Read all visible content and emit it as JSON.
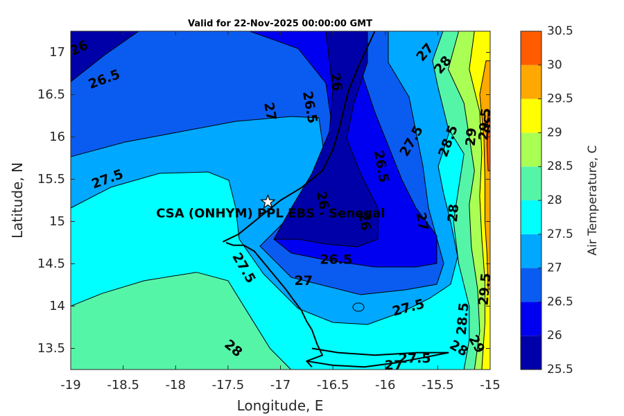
{
  "chart_data": {
    "type": "heatmap",
    "title": "Valid for 22-Nov-2025 00:00:00 GMT",
    "xlabel": "Longitude, E",
    "ylabel": "Latitude, N",
    "xlim": [
      -19,
      -15
    ],
    "ylim": [
      13.25,
      17.25
    ],
    "xticks": [
      -19,
      -18.5,
      -18,
      -17.5,
      -17,
      -16.5,
      -16,
      -15.5,
      -15
    ],
    "yticks": [
      13.5,
      14,
      14.5,
      15,
      15.5,
      16,
      16.5,
      17
    ],
    "colorbar": {
      "label": "Air Temperature, C",
      "levels": [
        25.5,
        26,
        26.5,
        27,
        27.5,
        28,
        28.5,
        29,
        29.5,
        30,
        30.5
      ],
      "tick_labels": [
        "25.5",
        "26",
        "26.5",
        "27",
        "27.5",
        "28",
        "28.5",
        "29",
        "29.5",
        "30",
        "30.5"
      ],
      "colors": [
        "#0000a8",
        "#0000f0",
        "#0a5cf0",
        "#00a8ff",
        "#00ffff",
        "#55f5a8",
        "#aaff55",
        "#ffff00",
        "#ffa800",
        "#ff5c00",
        "#ff0000"
      ]
    },
    "bands": [
      {
        "level": 28.0,
        "color": "#55f5a8",
        "points": [
          [
            -19,
            13.25
          ],
          [
            -19,
            14.0
          ],
          [
            -18.7,
            14.15
          ],
          [
            -18.3,
            14.3
          ],
          [
            -17.8,
            14.4
          ],
          [
            -17.5,
            14.3
          ],
          [
            -17.3,
            13.9
          ],
          [
            -17.1,
            13.5
          ],
          [
            -16.9,
            13.25
          ]
        ]
      },
      {
        "level": 28.0,
        "color": "#55f5a8",
        "points": [
          [
            -15.45,
            17.25
          ],
          [
            -15.55,
            16.9
          ],
          [
            -15.5,
            16.6
          ],
          [
            -15.4,
            16.1
          ],
          [
            -15.25,
            15.8
          ],
          [
            -15.3,
            15.4
          ],
          [
            -15.35,
            15.0
          ],
          [
            -15.3,
            14.5
          ],
          [
            -15.2,
            14.0
          ],
          [
            -15.2,
            13.6
          ],
          [
            -15.25,
            13.25
          ],
          [
            -15,
            13.25
          ],
          [
            -15,
            17.25
          ]
        ]
      },
      {
        "level": 28.5,
        "color": "#aaff55",
        "points": [
          [
            -15.3,
            17.25
          ],
          [
            -15.4,
            16.8
          ],
          [
            -15.25,
            16.4
          ],
          [
            -15.2,
            16.0
          ],
          [
            -15.15,
            15.6
          ],
          [
            -15.2,
            15.2
          ],
          [
            -15.18,
            14.7
          ],
          [
            -15.12,
            14.2
          ],
          [
            -15.1,
            13.7
          ],
          [
            -15.15,
            13.25
          ],
          [
            -15,
            13.25
          ],
          [
            -15,
            17.25
          ]
        ]
      },
      {
        "level": 29.0,
        "color": "#ffff00",
        "points": [
          [
            -15.15,
            17.25
          ],
          [
            -15.2,
            16.8
          ],
          [
            -15.1,
            16.3
          ],
          [
            -15.08,
            15.8
          ],
          [
            -15.1,
            15.3
          ],
          [
            -15.08,
            14.8
          ],
          [
            -15.05,
            14.3
          ],
          [
            -15.05,
            13.8
          ],
          [
            -15.08,
            13.25
          ],
          [
            -15,
            13.25
          ],
          [
            -15,
            17.25
          ]
        ]
      },
      {
        "level": 29.5,
        "color": "#ffa800",
        "points": [
          [
            -15.04,
            16.9
          ],
          [
            -15.1,
            16.5
          ],
          [
            -15.06,
            16.0
          ],
          [
            -15.05,
            15.5
          ],
          [
            -15.05,
            15.0
          ],
          [
            -15.03,
            14.6
          ],
          [
            -15.02,
            14.2
          ],
          [
            -15,
            14.2
          ],
          [
            -15,
            16.9
          ]
        ]
      },
      {
        "level": 30.0,
        "color": "#ff5c00",
        "points": [
          [
            -15.02,
            16.3
          ],
          [
            -15.03,
            15.9
          ],
          [
            -15.02,
            15.6
          ],
          [
            -15,
            15.6
          ],
          [
            -15,
            16.3
          ]
        ]
      }
    ],
    "contour_labels": [
      {
        "text": "26",
        "x": -18.92,
        "y": 17.05,
        "rot": -25
      },
      {
        "text": "26.5",
        "x": -18.68,
        "y": 16.68,
        "rot": -20
      },
      {
        "text": "27",
        "x": -17.1,
        "y": 16.3,
        "rot": 80
      },
      {
        "text": "26.5",
        "x": -16.72,
        "y": 16.35,
        "rot": 80
      },
      {
        "text": "26",
        "x": -16.47,
        "y": 16.65,
        "rot": 80
      },
      {
        "text": "27.5",
        "x": -18.65,
        "y": 15.5,
        "rot": -20
      },
      {
        "text": "26.5",
        "x": -16.04,
        "y": 15.65,
        "rot": 80
      },
      {
        "text": "26",
        "x": -16.6,
        "y": 15.25,
        "rot": 80
      },
      {
        "text": "26",
        "x": -16.2,
        "y": 15.0,
        "rot": 80
      },
      {
        "text": "27.5",
        "x": -15.75,
        "y": 15.95,
        "rot": -60
      },
      {
        "text": "27",
        "x": -15.62,
        "y": 17.0,
        "rot": -50
      },
      {
        "text": "28",
        "x": -15.45,
        "y": 16.85,
        "rot": -50
      },
      {
        "text": "28.5",
        "x": -15.4,
        "y": 15.95,
        "rot": -70
      },
      {
        "text": "29",
        "x": -15.18,
        "y": 16.0,
        "rot": -85
      },
      {
        "text": "29.5",
        "x": -15.05,
        "y": 16.15,
        "rot": -85
      },
      {
        "text": "30",
        "x": -15.02,
        "y": 16.15,
        "rot": 90
      },
      {
        "text": "27",
        "x": -15.65,
        "y": 15.0,
        "rot": 80
      },
      {
        "text": "28",
        "x": -15.35,
        "y": 15.1,
        "rot": -85
      },
      {
        "text": "27.5",
        "x": -17.35,
        "y": 14.45,
        "rot": 60
      },
      {
        "text": "26.5",
        "x": -16.47,
        "y": 14.55,
        "rot": 0
      },
      {
        "text": "27",
        "x": -16.78,
        "y": 14.3,
        "rot": 0
      },
      {
        "text": "27.5",
        "x": -15.78,
        "y": 13.98,
        "rot": -15
      },
      {
        "text": "28.5",
        "x": -15.26,
        "y": 13.85,
        "rot": -85
      },
      {
        "text": "29.5",
        "x": -15.05,
        "y": 14.2,
        "rot": -85
      },
      {
        "text": "29",
        "x": -15.13,
        "y": 13.55,
        "rot": 60
      },
      {
        "text": "28",
        "x": -15.3,
        "y": 13.5,
        "rot": 30
      },
      {
        "text": "28",
        "x": -17.45,
        "y": 13.5,
        "rot": 40
      },
      {
        "text": "27.5",
        "x": -15.72,
        "y": 13.38,
        "rot": 0
      },
      {
        "text": "27",
        "x": -15.92,
        "y": 13.3,
        "rot": 0
      }
    ],
    "site": {
      "name": "CSA (ONHYM) PPL EBS - Senegal",
      "lon": -17.12,
      "lat": 15.23
    },
    "coastline": [
      [
        -17.52,
        14.75
      ],
      [
        -17.45,
        14.72
      ],
      [
        -17.35,
        14.72
      ],
      [
        -17.25,
        14.65
      ],
      [
        -17.15,
        14.5
      ],
      [
        -17.05,
        14.35
      ],
      [
        -16.95,
        14.2
      ],
      [
        -16.88,
        14.08
      ],
      [
        -16.8,
        13.95
      ],
      [
        -16.75,
        13.82
      ],
      [
        -16.7,
        13.72
      ],
      [
        -16.65,
        13.55
      ],
      [
        -16.6,
        13.42
      ],
      [
        -16.75,
        13.35
      ],
      [
        -16.7,
        13.28
      ]
    ],
    "border": [
      [
        -17.55,
        14.76
      ],
      [
        -17.4,
        14.85
      ],
      [
        -17.2,
        15.05
      ],
      [
        -17.0,
        15.25
      ],
      [
        -16.8,
        15.4
      ],
      [
        -16.6,
        15.6
      ],
      [
        -16.5,
        15.85
      ],
      [
        -16.45,
        16.05
      ],
      [
        -16.4,
        16.3
      ],
      [
        -16.35,
        16.55
      ],
      [
        -16.25,
        16.85
      ],
      [
        -16.1,
        17.25
      ]
    ],
    "gambia": [
      [
        -16.75,
        13.35
      ],
      [
        -16.5,
        13.3
      ],
      [
        -16.2,
        13.28
      ],
      [
        -15.9,
        13.33
      ],
      [
        -15.6,
        13.4
      ],
      [
        -15.4,
        13.45
      ],
      [
        -15.7,
        13.45
      ],
      [
        -16.1,
        13.42
      ],
      [
        -16.45,
        13.45
      ],
      [
        -16.7,
        13.5
      ]
    ]
  }
}
